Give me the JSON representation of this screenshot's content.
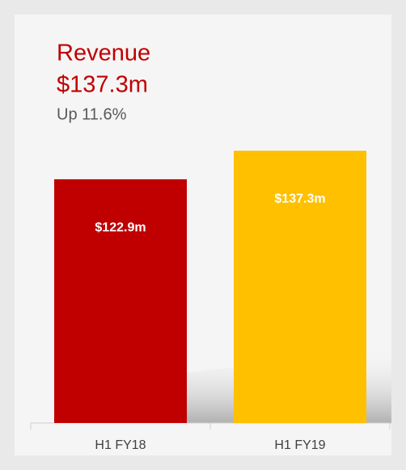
{
  "chart_data": {
    "type": "bar",
    "title": "Revenue",
    "subtitle": "$137.3m",
    "annotation": "Up 11.6%",
    "categories": [
      "H1 FY18",
      "H1 FY19"
    ],
    "values": [
      122.9,
      137.3
    ],
    "value_labels": [
      "$122.9m",
      "$137.3m"
    ],
    "colors": [
      "#c00000",
      "#ffc000"
    ]
  }
}
